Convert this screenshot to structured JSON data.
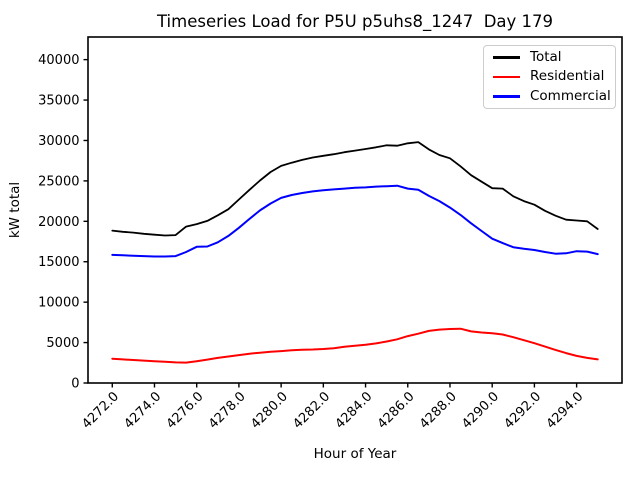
{
  "title": "Timeseries Load for P5U p5uhs8_1247  Day 179",
  "chart_data": {
    "type": "line",
    "title": "Timeseries Load for P5U p5uhs8_1247  Day 179",
    "xlabel": "Hour of Year",
    "ylabel": "kW total",
    "grid": false,
    "legend_position": "upper right",
    "xlim": [
      4270.85,
      4296.15
    ],
    "ylim": [
      0,
      42800
    ],
    "yticks": [
      0,
      5000,
      10000,
      15000,
      20000,
      25000,
      30000,
      35000,
      40000
    ],
    "ytick_labels": [
      "0",
      "5000",
      "10000",
      "15000",
      "20000",
      "25000",
      "30000",
      "35000",
      "40000"
    ],
    "xticks": [
      4272,
      4274,
      4276,
      4278,
      4280,
      4282,
      4284,
      4286,
      4288,
      4290,
      4292,
      4294
    ],
    "xtick_labels": [
      "4272.0",
      "4274.0",
      "4276.0",
      "4278.0",
      "4280.0",
      "4282.0",
      "4284.0",
      "4286.0",
      "4288.0",
      "4290.0",
      "4292.0",
      "4294.0"
    ],
    "x": [
      4272,
      4272.5,
      4273,
      4273.5,
      4274,
      4274.5,
      4275,
      4275.5,
      4276,
      4276.5,
      4277,
      4277.5,
      4278,
      4278.5,
      4279,
      4279.5,
      4280,
      4280.5,
      4281,
      4281.5,
      4282,
      4282.5,
      4283,
      4283.5,
      4284,
      4284.5,
      4285,
      4285.5,
      4286,
      4286.5,
      4287,
      4287.5,
      4288,
      4288.5,
      4289,
      4289.5,
      4290,
      4290.5,
      4291,
      4291.5,
      4292,
      4292.5,
      4293,
      4293.5,
      4294,
      4294.5,
      4295
    ],
    "series": [
      {
        "name": "Total",
        "color": "#000000",
        "values": [
          18850,
          18700,
          18600,
          18450,
          18350,
          18250,
          18300,
          19350,
          19650,
          20050,
          20750,
          21500,
          22700,
          23900,
          25050,
          26100,
          26850,
          27250,
          27600,
          27900,
          28100,
          28300,
          28550,
          28750,
          28950,
          29150,
          29400,
          29350,
          29650,
          29800,
          28900,
          28200,
          27800,
          26800,
          25700,
          24900,
          24100,
          24050,
          23100,
          22500,
          22050,
          21300,
          20700,
          20200,
          20100,
          20000,
          19050
        ]
      },
      {
        "name": "Residential",
        "color": "#ff0000",
        "values": [
          3000,
          2920,
          2850,
          2770,
          2700,
          2630,
          2550,
          2520,
          2700,
          2900,
          3100,
          3280,
          3450,
          3620,
          3750,
          3870,
          3950,
          4050,
          4120,
          4150,
          4200,
          4300,
          4480,
          4600,
          4720,
          4900,
          5130,
          5400,
          5800,
          6100,
          6440,
          6600,
          6680,
          6720,
          6380,
          6250,
          6150,
          6000,
          5660,
          5300,
          4920,
          4500,
          4090,
          3700,
          3350,
          3100,
          2920
        ]
      },
      {
        "name": "Commercial",
        "color": "#0000ff",
        "values": [
          15850,
          15800,
          15750,
          15700,
          15650,
          15650,
          15700,
          16200,
          16850,
          16880,
          17400,
          18200,
          19200,
          20300,
          21350,
          22200,
          22900,
          23250,
          23500,
          23700,
          23850,
          23950,
          24050,
          24150,
          24200,
          24300,
          24350,
          24400,
          24050,
          23900,
          23150,
          22500,
          21700,
          20800,
          19750,
          18800,
          17850,
          17300,
          16800,
          16600,
          16450,
          16200,
          16000,
          16050,
          16300,
          16250,
          15950
        ]
      }
    ]
  }
}
